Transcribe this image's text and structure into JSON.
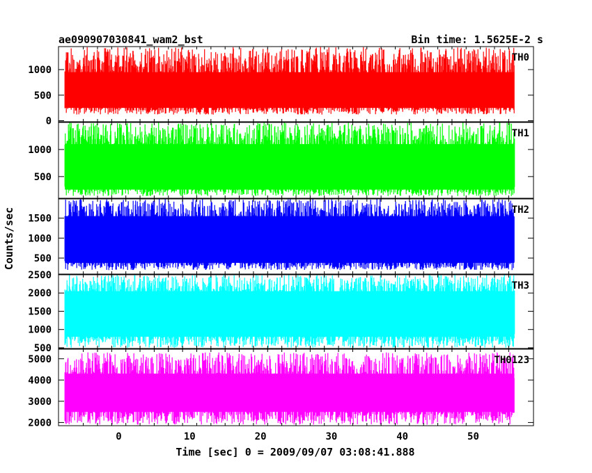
{
  "header": {
    "title": "ae090907030841_wam2_bst",
    "bin_time": "Bin time: 1.5625E-2 s"
  },
  "chart_data": {
    "type": "line",
    "ylabel": "Counts/sec",
    "xlabel": "Time [sec] 0 = 2009/09/07 03:08:41.888",
    "xlim": [
      -8.5,
      58.5
    ],
    "x_ticks": [
      0,
      10,
      20,
      30,
      40,
      50
    ],
    "x_data_range": [
      -7.6,
      55.8
    ],
    "grid": false,
    "panels": [
      {
        "name": "TH0",
        "color": "#ff0000",
        "ylim": [
          -20,
          1450
        ],
        "yticks": [
          0,
          500,
          1000
        ],
        "signal": {
          "lower_min": 120,
          "lower_max": 310,
          "upper_min": 880,
          "upper_max": 1440,
          "fill_low": 250,
          "fill_high": 950
        }
      },
      {
        "name": "TH1",
        "color": "#00ff00",
        "ylim": [
          100,
          1500
        ],
        "yticks": [
          500,
          1000
        ],
        "signal": {
          "lower_min": 140,
          "lower_max": 330,
          "upper_min": 1000,
          "upper_max": 1500,
          "fill_low": 260,
          "fill_high": 1100
        }
      },
      {
        "name": "TH2",
        "color": "#0000ff",
        "ylim": [
          100,
          1980
        ],
        "yticks": [
          500,
          1000,
          1500
        ],
        "signal": {
          "lower_min": 200,
          "lower_max": 450,
          "upper_min": 1450,
          "upper_max": 1980,
          "fill_low": 380,
          "fill_high": 1550
        }
      },
      {
        "name": "TH3",
        "color": "#00ffff",
        "ylim": [
          480,
          2500
        ],
        "yticks": [
          500,
          1000,
          1500,
          2000,
          2500
        ],
        "signal": {
          "lower_min": 500,
          "lower_max": 900,
          "upper_min": 1950,
          "upper_max": 2500,
          "fill_low": 800,
          "fill_high": 2050
        }
      },
      {
        "name": "TH0123",
        "color": "#ff00ff",
        "ylim": [
          1850,
          5450
        ],
        "yticks": [
          2000,
          3000,
          4000,
          5000
        ],
        "signal": {
          "lower_min": 1900,
          "lower_max": 2700,
          "upper_min": 4000,
          "upper_max": 5300,
          "fill_low": 2500,
          "fill_high": 4300
        }
      }
    ]
  }
}
